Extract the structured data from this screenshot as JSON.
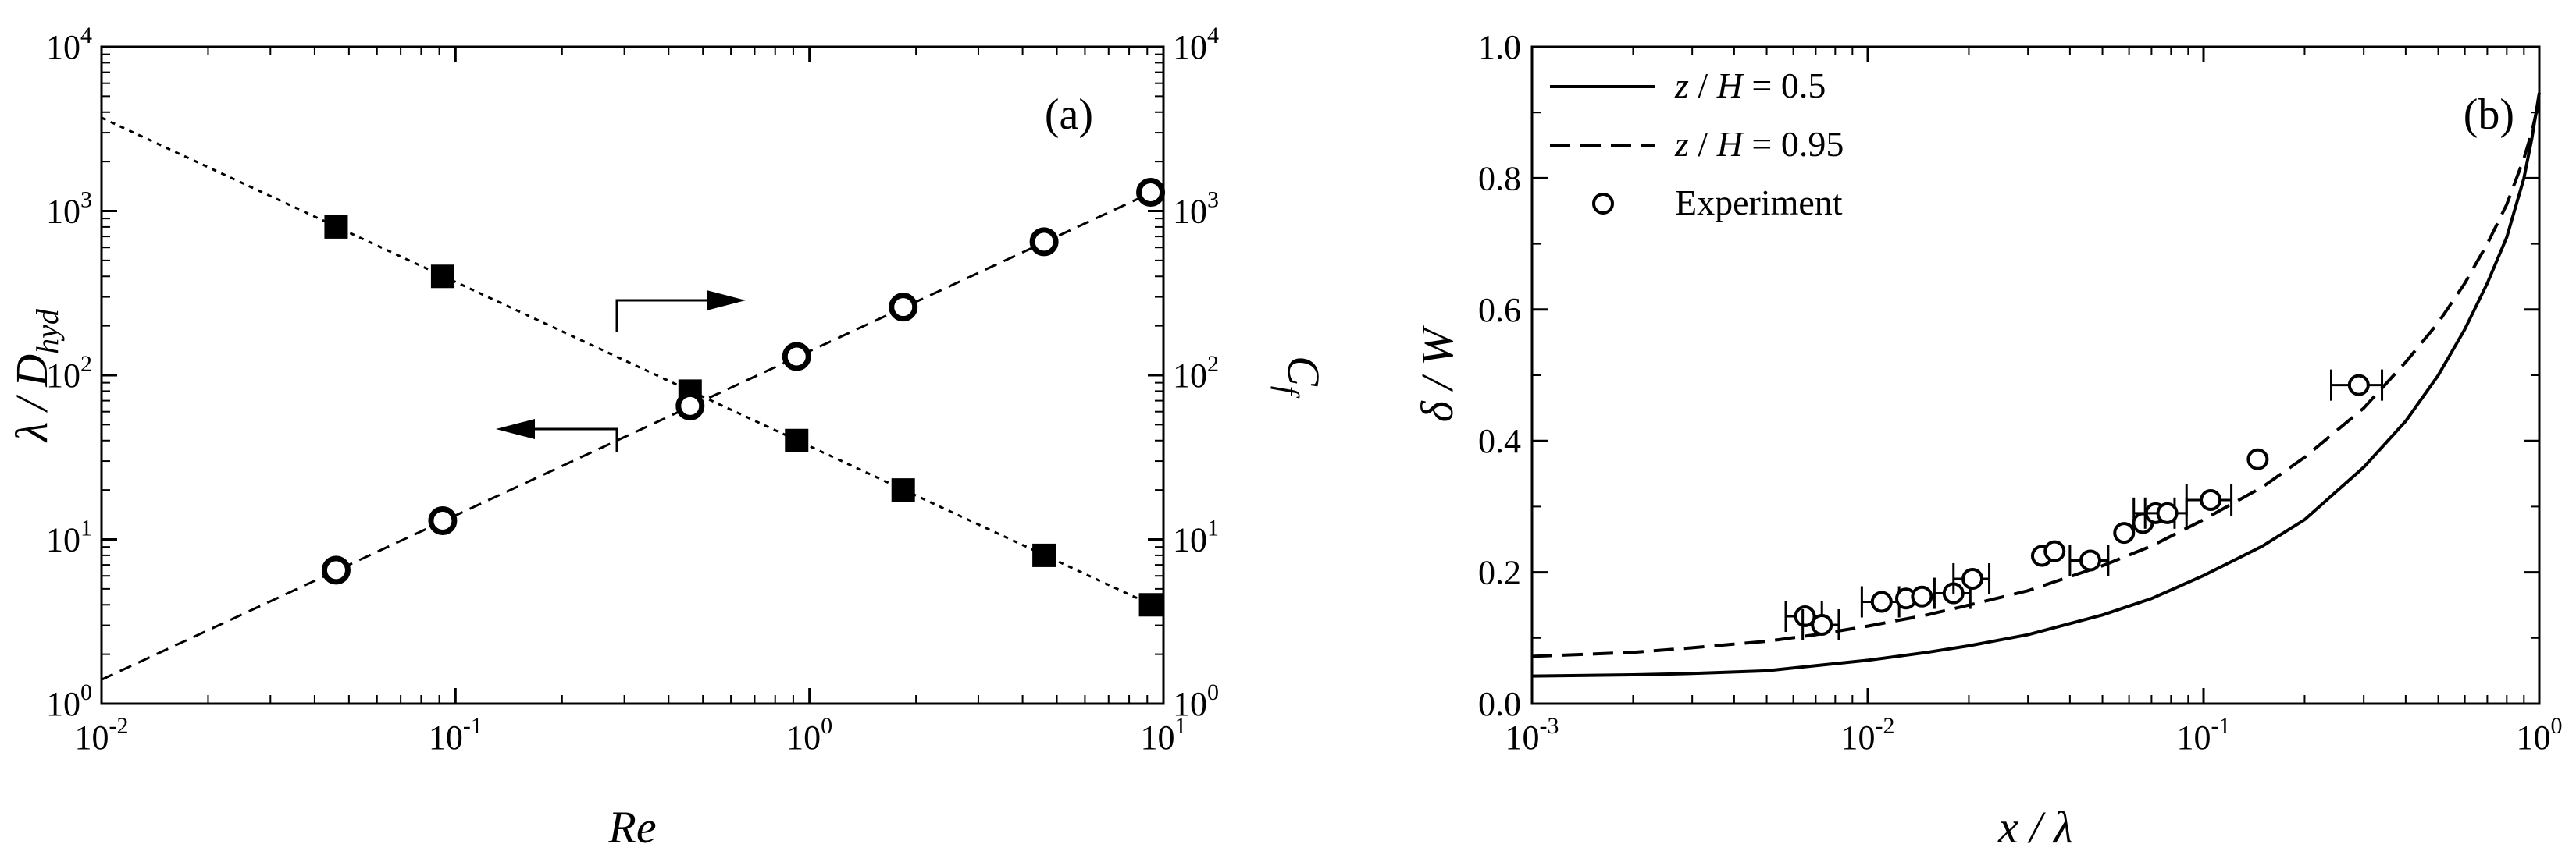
{
  "chart_data": [
    {
      "type": "scatter",
      "panel": "(a)",
      "x_scale": "log",
      "y_scale": "log",
      "xlim": [
        0.01,
        10
      ],
      "ylim": [
        1,
        10000
      ],
      "y2lim": [
        1,
        10000
      ],
      "grid": false,
      "xlabel": "Re",
      "ylabel_main": "λ / D",
      "ylabel_sub": "hyd",
      "y2label_main": "C",
      "y2label_sub": "f",
      "x_ticks": [
        {
          "base": "10",
          "exp": "-2"
        },
        {
          "base": "10",
          "exp": "-1"
        },
        {
          "base": "10",
          "exp": "0"
        },
        {
          "base": "10",
          "exp": "1"
        }
      ],
      "y_ticks": [
        {
          "base": "10",
          "exp": "0"
        },
        {
          "base": "10",
          "exp": "1"
        },
        {
          "base": "10",
          "exp": "2"
        },
        {
          "base": "10",
          "exp": "3"
        },
        {
          "base": "10",
          "exp": "4"
        }
      ],
      "series": [
        {
          "axis": "left",
          "marker": "square",
          "x": [
            0.046,
            0.092,
            0.46,
            0.92,
            1.84,
            4.6,
            9.2
          ],
          "y": [
            800,
            400,
            80,
            40,
            20,
            8,
            4
          ],
          "fit": {
            "x": [
              0.01,
              10
            ],
            "y": [
              3700,
              3.7
            ],
            "style": "dotted"
          }
        },
        {
          "axis": "right",
          "marker": "circle",
          "x": [
            0.046,
            0.092,
            0.46,
            0.92,
            1.84,
            4.6,
            9.2
          ],
          "y": [
            6.5,
            13,
            65,
            130,
            260,
            650,
            1300
          ],
          "fit": {
            "x": [
              0.01,
              10
            ],
            "y": [
              1.4,
              1400
            ],
            "style": "dashed"
          }
        }
      ]
    },
    {
      "type": "line",
      "panel": "(b)",
      "x_scale": "log",
      "y_scale": "linear",
      "xlim": [
        0.001,
        1
      ],
      "ylim": [
        0,
        1.0
      ],
      "grid": false,
      "legend_position": "top-left",
      "xlabel": "x / λ",
      "ylabel": "δ / W",
      "x_ticks": [
        {
          "base": "10",
          "exp": "-3"
        },
        {
          "base": "10",
          "exp": "-2"
        },
        {
          "base": "10",
          "exp": "-1"
        },
        {
          "base": "10",
          "exp": "0"
        }
      ],
      "y_ticks": [
        "0.0",
        "0.2",
        "0.4",
        "0.6",
        "0.8",
        "1.0"
      ],
      "series": [
        {
          "name": "z / H = 0.5",
          "legend_parts": [
            "z",
            " / ",
            "H",
            " = 0.5"
          ],
          "style": "solid",
          "x": [
            0.001,
            0.002,
            0.003,
            0.005,
            0.007,
            0.01,
            0.015,
            0.02,
            0.03,
            0.05,
            0.07,
            0.1,
            0.15,
            0.2,
            0.3,
            0.4,
            0.5,
            0.6,
            0.7,
            0.8,
            0.9,
            0.95,
            1.0
          ],
          "y": [
            0.042,
            0.044,
            0.046,
            0.05,
            0.058,
            0.066,
            0.078,
            0.088,
            0.105,
            0.135,
            0.16,
            0.195,
            0.24,
            0.28,
            0.36,
            0.43,
            0.5,
            0.57,
            0.64,
            0.71,
            0.8,
            0.86,
            0.93
          ]
        },
        {
          "name": "z / H = 0.95",
          "legend_parts": [
            "z",
            " / ",
            "H",
            " = 0.95"
          ],
          "style": "dashed",
          "x": [
            0.001,
            0.002,
            0.003,
            0.005,
            0.007,
            0.01,
            0.015,
            0.02,
            0.03,
            0.05,
            0.07,
            0.1,
            0.15,
            0.2,
            0.3,
            0.4,
            0.5,
            0.6,
            0.7,
            0.8,
            0.9,
            0.95,
            1.0
          ],
          "y": [
            0.072,
            0.078,
            0.085,
            0.095,
            0.105,
            0.118,
            0.135,
            0.15,
            0.172,
            0.21,
            0.24,
            0.28,
            0.33,
            0.375,
            0.45,
            0.52,
            0.58,
            0.64,
            0.7,
            0.76,
            0.83,
            0.87,
            0.92
          ]
        },
        {
          "name": "Experiment",
          "legend_parts": [
            "Experiment"
          ],
          "style": "markers",
          "x": [
            0.0065,
            0.0073,
            0.011,
            0.013,
            0.0145,
            0.018,
            0.0205,
            0.033,
            0.036,
            0.046,
            0.058,
            0.066,
            0.072,
            0.078,
            0.105,
            0.145,
            0.29
          ],
          "y": [
            0.133,
            0.12,
            0.155,
            0.16,
            0.163,
            0.168,
            0.19,
            0.225,
            0.232,
            0.218,
            0.26,
            0.275,
            0.29,
            0.29,
            0.31,
            0.372,
            0.485
          ],
          "xerr": [
            0.0008,
            0.0009,
            0.0014,
            0,
            0,
            0.0022,
            0.0025,
            0,
            0,
            0.006,
            0,
            0,
            0.01,
            0.011,
            0.016,
            0,
            0.05
          ]
        }
      ]
    }
  ]
}
